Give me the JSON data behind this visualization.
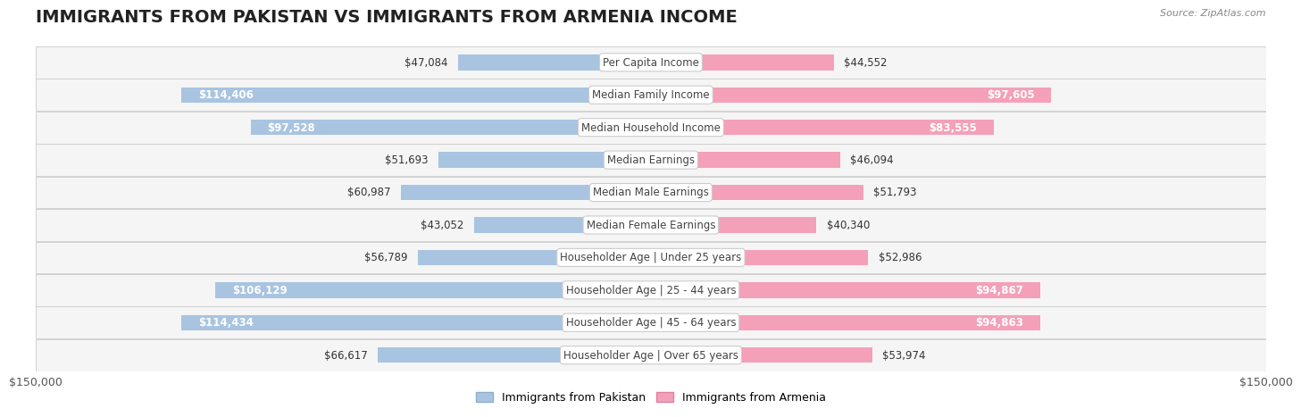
{
  "title": "IMMIGRANTS FROM PAKISTAN VS IMMIGRANTS FROM ARMENIA INCOME",
  "source": "Source: ZipAtlas.com",
  "categories": [
    "Per Capita Income",
    "Median Family Income",
    "Median Household Income",
    "Median Earnings",
    "Median Male Earnings",
    "Median Female Earnings",
    "Householder Age | Under 25 years",
    "Householder Age | 25 - 44 years",
    "Householder Age | 45 - 64 years",
    "Householder Age | Over 65 years"
  ],
  "pakistan_values": [
    47084,
    114406,
    97528,
    51693,
    60987,
    43052,
    56789,
    106129,
    114434,
    66617
  ],
  "armenia_values": [
    44552,
    97605,
    83555,
    46094,
    51793,
    40340,
    52986,
    94867,
    94863,
    53974
  ],
  "pakistan_color": "#a8c4e0",
  "armenia_color": "#f4a0b8",
  "pakistan_label": "Immigrants from Pakistan",
  "armenia_label": "Immigrants from Armenia",
  "max_value": 150000,
  "title_fontsize": 14,
  "value_fontsize": 8.5,
  "cat_fontsize": 8.5,
  "axis_label": "$150,000",
  "inside_threshold": 70000
}
